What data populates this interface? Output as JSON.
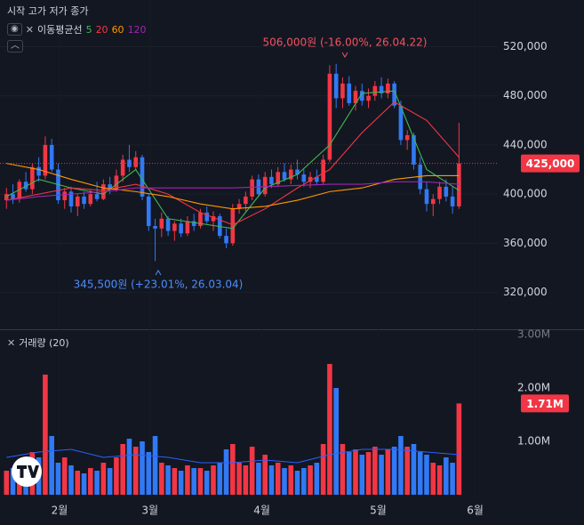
{
  "chart_data": {
    "type": "candlestick",
    "header": "시작 고가 저가 종가",
    "ma_label": "이동평균선",
    "up_color": "#f23645",
    "down_color": "#3179f5",
    "xlim": [
      -1,
      76
    ],
    "xticks": [
      {
        "value": 8.2,
        "label": "2월"
      },
      {
        "value": 22.2,
        "label": "3월"
      },
      {
        "value": 39.5,
        "label": "4월"
      },
      {
        "value": 57.5,
        "label": "5월"
      },
      {
        "value": 72.5,
        "label": "6월"
      }
    ],
    "ylim": [
      290000,
      558000
    ],
    "yticks": [
      {
        "value": 320000,
        "label": "320,000"
      },
      {
        "value": 360000,
        "label": "360,000"
      },
      {
        "value": 400000,
        "label": "400,000"
      },
      {
        "value": 440000,
        "label": "440,000"
      },
      {
        "value": 480000,
        "label": "480,000"
      },
      {
        "value": 520000,
        "label": "520,000"
      }
    ],
    "candles": {
      "open": [
        395000,
        400000,
        396000,
        410000,
        404000,
        422000,
        415000,
        440000,
        420000,
        395000,
        402000,
        390000,
        398000,
        392000,
        400000,
        396000,
        408000,
        404000,
        415000,
        428000,
        422000,
        430000,
        398000,
        374000,
        372000,
        380000,
        370000,
        376000,
        368000,
        378000,
        374000,
        385000,
        378000,
        382000,
        366000,
        360000,
        388000,
        392000,
        398000,
        412000,
        400000,
        414000,
        408000,
        418000,
        412000,
        420000,
        416000,
        410000,
        414000,
        410000,
        428000,
        498000,
        478000,
        490000,
        474000,
        484000,
        476000,
        480000,
        488000,
        482000,
        490000,
        472000,
        444000,
        448000,
        424000,
        404000,
        392000,
        396000,
        406000,
        398000,
        390000
      ],
      "high": [
        405000,
        408000,
        412000,
        418000,
        425000,
        430000,
        447000,
        445000,
        425000,
        405000,
        406000,
        400000,
        402000,
        404000,
        410000,
        412000,
        414000,
        420000,
        432000,
        440000,
        435000,
        432000,
        400000,
        380000,
        385000,
        382000,
        378000,
        380000,
        382000,
        384000,
        388000,
        390000,
        386000,
        384000,
        372000,
        392000,
        396000,
        402000,
        415000,
        416000,
        418000,
        420000,
        422000,
        425000,
        424000,
        428000,
        420000,
        418000,
        420000,
        432000,
        505000,
        506000,
        495000,
        496000,
        488000,
        490000,
        486000,
        492000,
        495000,
        494000,
        492000,
        476000,
        452000,
        450000,
        430000,
        410000,
        400000,
        410000,
        412000,
        406000,
        458000
      ],
      "low": [
        388000,
        392000,
        393000,
        402000,
        400000,
        410000,
        412000,
        418000,
        392000,
        388000,
        385000,
        382000,
        388000,
        390000,
        394000,
        395000,
        400000,
        402000,
        410000,
        418000,
        420000,
        395000,
        370000,
        345500,
        365000,
        366000,
        362000,
        365000,
        366000,
        370000,
        372000,
        376000,
        370000,
        364000,
        356000,
        358000,
        384000,
        386000,
        395000,
        398000,
        398000,
        405000,
        406000,
        410000,
        408000,
        412000,
        406000,
        405000,
        408000,
        408000,
        426000,
        470000,
        470000,
        472000,
        468000,
        472000,
        470000,
        476000,
        478000,
        478000,
        470000,
        440000,
        436000,
        420000,
        400000,
        386000,
        382000,
        392000,
        394000,
        384000,
        388000
      ],
      "close": [
        400000,
        396000,
        410000,
        404000,
        422000,
        415000,
        440000,
        420000,
        395000,
        402000,
        390000,
        398000,
        392000,
        400000,
        396000,
        408000,
        404000,
        415000,
        428000,
        422000,
        430000,
        398000,
        374000,
        372000,
        380000,
        370000,
        376000,
        368000,
        378000,
        374000,
        385000,
        378000,
        382000,
        366000,
        360000,
        388000,
        392000,
        398000,
        412000,
        400000,
        414000,
        408000,
        418000,
        412000,
        420000,
        416000,
        410000,
        414000,
        410000,
        428000,
        498000,
        478000,
        490000,
        474000,
        484000,
        476000,
        480000,
        488000,
        482000,
        490000,
        472000,
        444000,
        448000,
        424000,
        404000,
        392000,
        396000,
        406000,
        398000,
        390000,
        425000
      ]
    },
    "ma_series": [
      {
        "name": "5",
        "color": "#3fb950",
        "x": [
          0,
          5,
          10,
          15,
          20,
          25,
          30,
          35,
          40,
          45,
          50,
          55,
          60,
          65,
          70
        ],
        "values": [
          398000,
          412000,
          405000,
          400000,
          420000,
          380000,
          376000,
          372000,
          405000,
          416000,
          440000,
          482000,
          484000,
          420000,
          403000
        ]
      },
      {
        "name": "20",
        "color": "#f23645",
        "x": [
          0,
          5,
          10,
          15,
          20,
          25,
          30,
          35,
          40,
          45,
          50,
          55,
          60,
          65,
          70
        ],
        "values": [
          395000,
          400000,
          405000,
          403000,
          408000,
          400000,
          385000,
          375000,
          388000,
          405000,
          420000,
          450000,
          475000,
          460000,
          430000
        ]
      },
      {
        "name": "60",
        "color": "#ff9800",
        "x": [
          0,
          5,
          10,
          15,
          20,
          25,
          30,
          35,
          40,
          45,
          50,
          55,
          60,
          65,
          70
        ],
        "values": [
          425000,
          420000,
          412000,
          405000,
          402000,
          398000,
          392000,
          388000,
          390000,
          395000,
          402000,
          405000,
          412000,
          415000,
          415000
        ]
      },
      {
        "name": "120",
        "color": "#9c27b0",
        "x": [
          0,
          5,
          10,
          15,
          20,
          25,
          30,
          35,
          40,
          45,
          50,
          55,
          60,
          65,
          70
        ],
        "values": [
          395000,
          398000,
          400000,
          402000,
          405000,
          405000,
          405000,
          405000,
          406000,
          407000,
          408000,
          408000,
          410000,
          410000,
          408000
        ]
      }
    ],
    "last_price": {
      "value": 425000,
      "label": "425,000"
    },
    "annotations": [
      {
        "text": "506,000원 (-16.00%, 26.04.22)",
        "color": "#f7525f"
      },
      {
        "text": "345,500원 (+23.01%, 26.03.04)",
        "color": "#4c8dff"
      }
    ],
    "volume": {
      "title": "거래량 (20)",
      "ylim": [
        0,
        3.1
      ],
      "yticks": [
        {
          "value": 1,
          "label": "1.00M"
        },
        {
          "value": 2,
          "label": "2.00M"
        },
        {
          "value": 3,
          "label": "3.00M"
        }
      ],
      "values": [
        0.45,
        0.5,
        0.6,
        0.55,
        0.8,
        0.7,
        2.25,
        1.1,
        0.6,
        0.7,
        0.55,
        0.45,
        0.4,
        0.5,
        0.45,
        0.6,
        0.5,
        0.7,
        0.95,
        1.05,
        0.9,
        1.0,
        0.8,
        1.1,
        0.6,
        0.55,
        0.5,
        0.45,
        0.55,
        0.5,
        0.5,
        0.45,
        0.55,
        0.6,
        0.85,
        0.95,
        0.6,
        0.55,
        0.9,
        0.6,
        0.75,
        0.55,
        0.6,
        0.5,
        0.55,
        0.45,
        0.5,
        0.55,
        0.6,
        0.95,
        2.45,
        2.0,
        0.95,
        0.8,
        0.85,
        0.75,
        0.8,
        0.9,
        0.75,
        0.85,
        0.9,
        1.1,
        0.9,
        0.95,
        0.8,
        0.75,
        0.6,
        0.55,
        0.7,
        0.6,
        1.71
      ],
      "last_value": {
        "value": 1.71,
        "label": "1.71M"
      },
      "ma": {
        "color": "#2962ff",
        "x": [
          0,
          5,
          10,
          15,
          20,
          25,
          30,
          35,
          40,
          45,
          50,
          55,
          60,
          65,
          70
        ],
        "values": [
          0.7,
          0.8,
          0.85,
          0.7,
          0.75,
          0.7,
          0.6,
          0.6,
          0.65,
          0.6,
          0.75,
          0.85,
          0.85,
          0.8,
          0.75
        ]
      }
    }
  }
}
